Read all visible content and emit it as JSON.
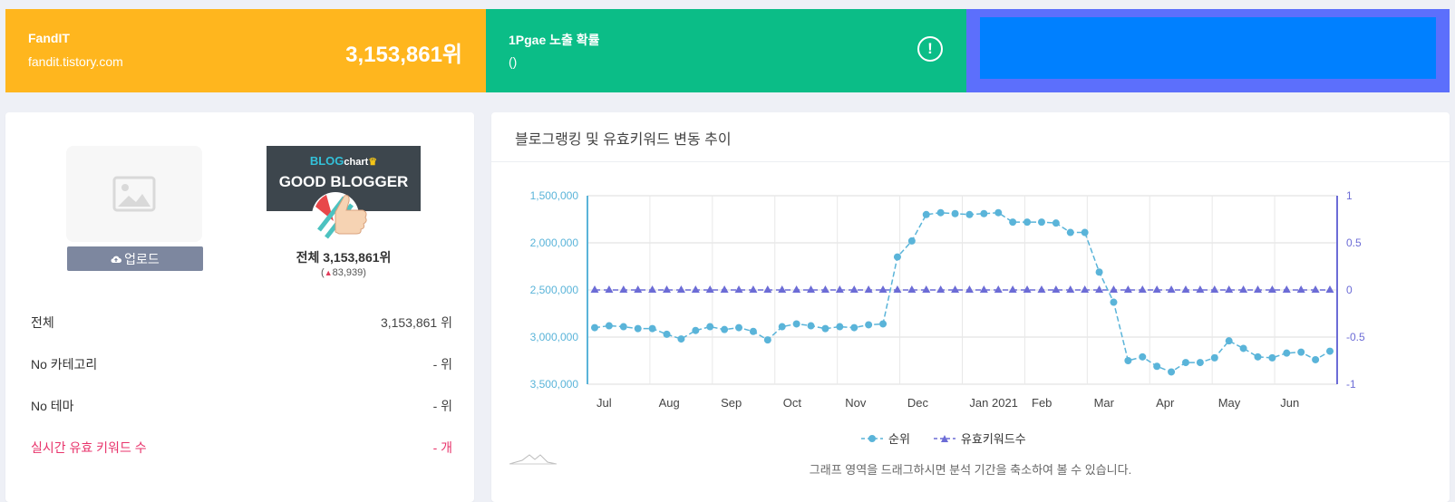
{
  "header": {
    "blog": {
      "name": "FandIT",
      "url": "fandit.tistory.com",
      "rank": "3,153,861위"
    },
    "exposure": {
      "title": "1Pgae 노출 확률",
      "value": "()",
      "icon": "exclamation-circle-icon"
    },
    "ad": {
      "color": "#0080ff"
    }
  },
  "profile": {
    "upload_label": "업로드",
    "upload_icon": "cloud-upload-icon",
    "badge_brand": "BLOG",
    "badge_brand_suffix": "chart",
    "badge_title": "GOOD BLOGGER",
    "rank_total": "전체 3,153,861위",
    "rank_change": "83,939",
    "rank_change_direction": "up",
    "rows": [
      {
        "label": "전체",
        "value": "3,153,861 위"
      },
      {
        "label": "No 카테고리",
        "value": "- 위"
      },
      {
        "label": "No 테마",
        "value": "- 위"
      },
      {
        "label": "실시간 유효 키워드 수",
        "value": "- 개"
      }
    ]
  },
  "chart_panel": {
    "title": "블로그랭킹 및 유효키워드 변동 추이",
    "hint": "그래프 영역을 드래그하시면 분석 기간을 축소하여 볼 수 있습니다."
  },
  "chart_data": {
    "type": "line",
    "x_labels": [
      "Jul",
      "Aug",
      "Sep",
      "Oct",
      "Nov",
      "Dec",
      "Jan 2021",
      "Feb",
      "Mar",
      "Apr",
      "May",
      "Jun"
    ],
    "y_left": {
      "ticks": [
        "1,500,000",
        "2,000,000",
        "2,500,000",
        "3,000,000",
        "3,500,000"
      ],
      "range": [
        1500000,
        3500000
      ],
      "reversed": true
    },
    "y_right": {
      "ticks": [
        "1",
        "0.5",
        "0",
        "-0.5",
        "-1"
      ],
      "range": [
        -1,
        1
      ]
    },
    "grid": true,
    "legend_position": "bottom",
    "series": [
      {
        "name": "순위",
        "axis": "left",
        "color": "#5ab4d9",
        "values": [
          2900000,
          2880000,
          2890000,
          2910000,
          2910000,
          2970000,
          3020000,
          2930000,
          2890000,
          2920000,
          2900000,
          2940000,
          3030000,
          2890000,
          2860000,
          2880000,
          2910000,
          2890000,
          2900000,
          2870000,
          2860000,
          2150000,
          1980000,
          1700000,
          1680000,
          1690000,
          1700000,
          1690000,
          1680000,
          1780000,
          1780000,
          1780000,
          1790000,
          1890000,
          1890000,
          2310000,
          2630000,
          3250000,
          3210000,
          3310000,
          3370000,
          3270000,
          3270000,
          3220000,
          3040000,
          3120000,
          3210000,
          3220000,
          3170000,
          3160000,
          3240000,
          3150000
        ]
      },
      {
        "name": "유효키워드수",
        "axis": "right",
        "color": "#6c6cd6",
        "values": [
          0,
          0,
          0,
          0,
          0,
          0,
          0,
          0,
          0,
          0,
          0,
          0,
          0,
          0,
          0,
          0,
          0,
          0,
          0,
          0,
          0,
          0,
          0,
          0,
          0,
          0,
          0,
          0,
          0,
          0,
          0,
          0,
          0,
          0,
          0,
          0,
          0,
          0,
          0,
          0,
          0,
          0,
          0,
          0,
          0,
          0,
          0,
          0,
          0,
          0,
          0,
          0
        ]
      }
    ]
  }
}
